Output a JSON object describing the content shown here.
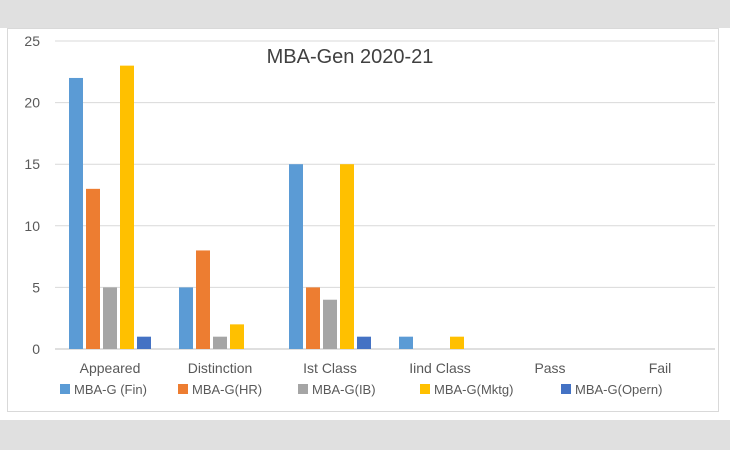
{
  "chart_data": {
    "type": "bar",
    "title": "MBA-Gen 2020-21",
    "xlabel": "",
    "ylabel": "",
    "categories": [
      "Appeared",
      "Distinction",
      "Ist Class",
      "Iind Class",
      "Pass",
      "Fail"
    ],
    "series": [
      {
        "name": "MBA-G (Fin)",
        "color": "#5b9bd5",
        "values": [
          22,
          5,
          15,
          1,
          0,
          0
        ]
      },
      {
        "name": "MBA-G(HR)",
        "color": "#ed7d31",
        "values": [
          13,
          8,
          5,
          0,
          0,
          0
        ]
      },
      {
        "name": "MBA-G(IB)",
        "color": "#a5a5a5",
        "values": [
          5,
          1,
          4,
          0,
          0,
          0
        ]
      },
      {
        "name": "MBA-G(Mktg)",
        "color": "#ffc000",
        "values": [
          23,
          2,
          15,
          1,
          0,
          0
        ]
      },
      {
        "name": "MBA-G(Opern)",
        "color": "#4472c4",
        "values": [
          1,
          0,
          1,
          0,
          0,
          0
        ]
      }
    ],
    "ylim": [
      0,
      25
    ],
    "yticks": [
      0,
      5,
      10,
      15,
      20,
      25
    ],
    "grid": true,
    "legend_position": "bottom"
  }
}
